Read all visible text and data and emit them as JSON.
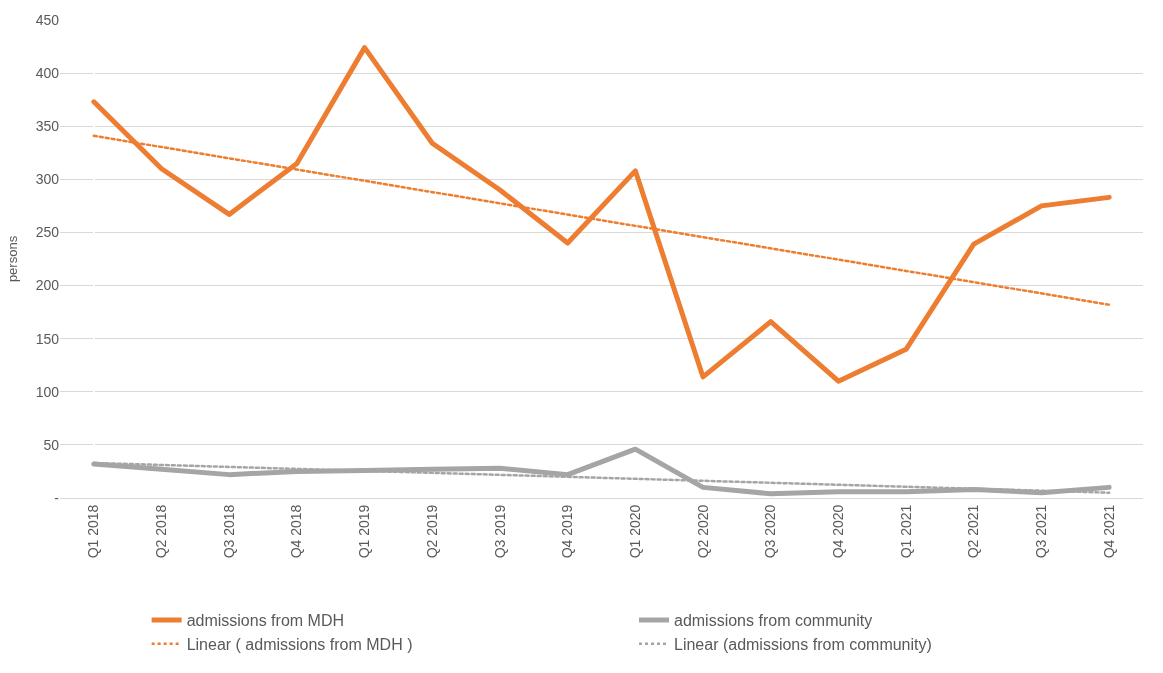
{
  "chart_data": {
    "type": "line",
    "ylabel": "persons",
    "categories": [
      "Q1 2018",
      "Q2 2018",
      "Q3 2018",
      "Q4 2018",
      "Q1 2019",
      "Q2 2019",
      "Q3 2019",
      "Q4 2019",
      "Q1 2020",
      "Q2 2020",
      "Q3 2020",
      "Q4 2020",
      "Q1 2021",
      "Q2 2021",
      "Q3 2021",
      "Q4 2021"
    ],
    "series": [
      {
        "name": "admissions from MDH",
        "color": "#ed7d31",
        "line_style": "solid",
        "values": [
          373,
          310,
          267,
          315,
          424,
          334,
          290,
          240,
          308,
          114,
          166,
          110,
          140,
          239,
          275,
          283
        ]
      },
      {
        "name": "admissions from community",
        "color": "#a5a5a5",
        "line_style": "solid",
        "values": [
          32,
          27,
          22,
          25,
          26,
          27,
          28,
          22,
          46,
          10,
          4,
          6,
          6,
          8,
          5,
          10
        ]
      },
      {
        "name": "Linear ( admissions from MDH )",
        "type": "line",
        "color": "#ed7d31",
        "line_style": "dotted",
        "x": [
          "Q1 2018",
          "Q4 2021"
        ],
        "values": [
          341,
          182
        ]
      },
      {
        "name": "Linear (admissions from community)",
        "type": "line",
        "color": "#a5a5a5",
        "line_style": "dotted",
        "x": [
          "Q1 2018",
          "Q4 2021"
        ],
        "values": [
          33,
          5
        ]
      }
    ],
    "ylim": [
      0,
      450
    ],
    "yticks": [
      {
        "value": 0,
        "label": "-"
      },
      50,
      100,
      150,
      200,
      250,
      300,
      350,
      400,
      450
    ],
    "grid": "y",
    "legend": "bottom",
    "marker": "none"
  }
}
